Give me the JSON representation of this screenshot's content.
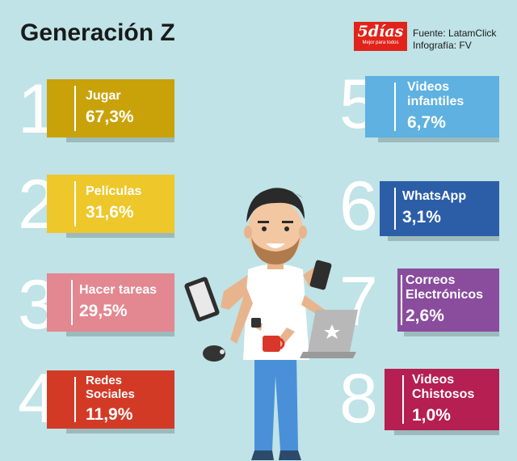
{
  "header": {
    "title": "Generación Z",
    "logo_text": "5días",
    "logo_tagline": "Mejor para todos",
    "source": "Fuente: LatamClick",
    "credit": "Infografía: FV"
  },
  "items": [
    {
      "rank": "1",
      "label": "Jugar",
      "value": "67,3%",
      "fraction": 0.673,
      "color": "#c9a20a"
    },
    {
      "rank": "2",
      "label": "Películas",
      "value": "31,6%",
      "fraction": 0.316,
      "color": "#eec72a"
    },
    {
      "rank": "3",
      "label": "Hacer tareas",
      "value": "29,5%",
      "fraction": 0.295,
      "color": "#e38790"
    },
    {
      "rank": "4",
      "label": "Redes Sociales",
      "value": "11,9%",
      "fraction": 0.119,
      "color": "#d33a26"
    },
    {
      "rank": "5",
      "label": "Videos infantiles",
      "value": "6,7%",
      "fraction": 0.067,
      "color": "#5eb1e1"
    },
    {
      "rank": "6",
      "label": "WhatsApp",
      "value": "3,1%",
      "fraction": 0.031,
      "color": "#2c5ea8"
    },
    {
      "rank": "7",
      "label": "Correos Electrónicos",
      "value": "2,6%",
      "fraction": 0.026,
      "color": "#8a4c9d"
    },
    {
      "rank": "8",
      "label": "Videos Chistosos",
      "value": "1,0%",
      "fraction": 0.01,
      "color": "#b51f52"
    }
  ]
}
